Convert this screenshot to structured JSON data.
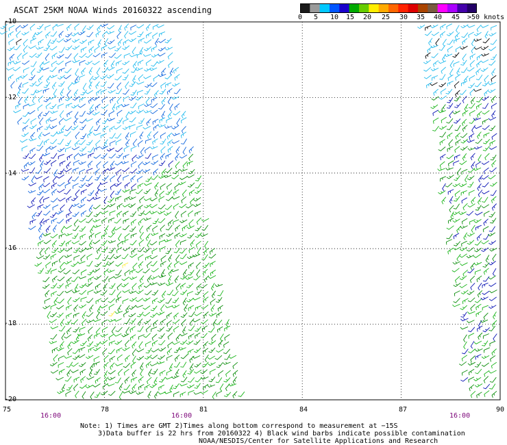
{
  "title": "ASCAT 25KM NOAA Winds 20160322 ascending",
  "colorbar": {
    "labels": [
      "0",
      "5",
      "10",
      "15",
      "20",
      "25",
      "30",
      "35",
      "40",
      "45",
      ">50 knots"
    ],
    "colors": [
      "#1a1a1a",
      "#9a9a9a",
      "#00c8ff",
      "#0055ff",
      "#1a00cc",
      "#00aa00",
      "#66cc00",
      "#ffee00",
      "#ffaa00",
      "#ff6600",
      "#ff2200",
      "#dd0000",
      "#aa4400",
      "#7a5a40",
      "#ff00ff",
      "#aa00ff",
      "#4400aa",
      "#220066"
    ]
  },
  "axes": {
    "lat_labels": [
      "-10",
      "-12",
      "-14",
      "-16",
      "-18",
      "-20"
    ],
    "lon_labels": [
      "75",
      "78",
      "81",
      "84",
      "87",
      "90"
    ],
    "time_labels": [
      "16:00",
      "16:00",
      "16:00"
    ]
  },
  "notes": {
    "line1": "Note: 1) Times are GMT 2)Times along bottom correspond to measurement at −15S",
    "line2": "3)Data buffer is 22 hrs from 20160322 4) Black wind barbs indicate possible contamination",
    "line3": "NOAA/NESDIS/Center for Satellite Applications and Research"
  },
  "wind_colors": {
    "light_blue": "#22bbee",
    "mid_blue": "#1166dd",
    "dark_blue": "#0a14b4",
    "green": "#18b418",
    "dark_green": "#0a8c0a",
    "black": "#000000",
    "yellow": "#ffee44"
  },
  "map_data": {
    "lon_range": [
      75,
      90
    ],
    "lat_range": [
      -20,
      -10
    ],
    "grid": true,
    "swaths": [
      {
        "name": "west",
        "corners_lonlat": [
          [
            75.0,
            -10.0
          ],
          [
            80.0,
            -10.0
          ],
          [
            82.3,
            -20.0
          ],
          [
            76.7,
            -20.0
          ]
        ]
      },
      {
        "name": "east",
        "corners_lonlat": [
          [
            87.7,
            -10.0
          ],
          [
            90.0,
            -10.0
          ],
          [
            90.0,
            -20.0
          ],
          [
            89.1,
            -20.0
          ]
        ]
      }
    ]
  }
}
